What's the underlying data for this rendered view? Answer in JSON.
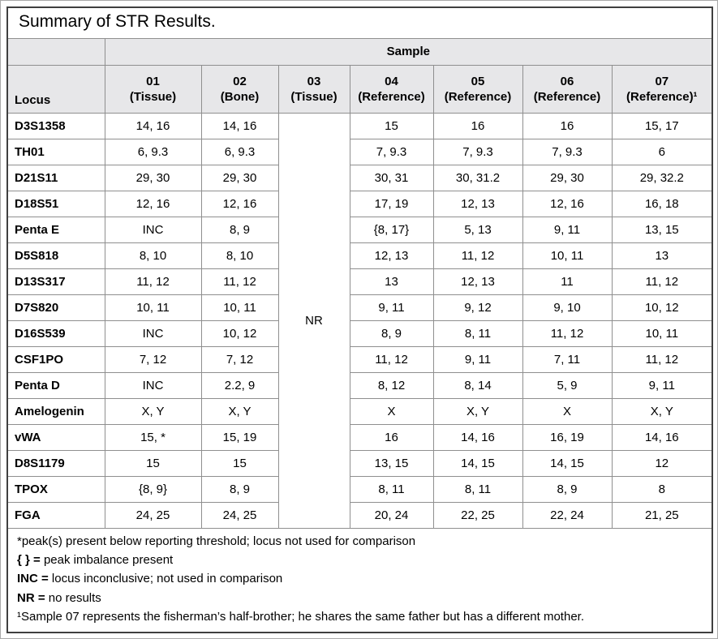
{
  "title": "Summary of STR Results.",
  "table": {
    "sample_group_header": "Sample",
    "locus_header": "Locus",
    "columns": [
      {
        "id": "01",
        "type": "(Tissue)"
      },
      {
        "id": "02",
        "type": "(Bone)"
      },
      {
        "id": "03",
        "type": "(Tissue)"
      },
      {
        "id": "04",
        "type": "(Reference)"
      },
      {
        "id": "05",
        "type": "(Reference)"
      },
      {
        "id": "06",
        "type": "(Reference)"
      },
      {
        "id": "07",
        "type": "(Reference)¹"
      }
    ],
    "merged_no_result": {
      "column": "03",
      "value": "NR"
    },
    "rows": [
      {
        "locus": "D3S1358",
        "values": [
          "14, 16",
          "14, 16",
          "15",
          "16",
          "16",
          "15, 17"
        ]
      },
      {
        "locus": "TH01",
        "values": [
          "6, 9.3",
          "6, 9.3",
          "7, 9.3",
          "7, 9.3",
          "7, 9.3",
          "6"
        ]
      },
      {
        "locus": "D21S11",
        "values": [
          "29, 30",
          "29, 30",
          "30, 31",
          "30, 31.2",
          "29, 30",
          "29, 32.2"
        ]
      },
      {
        "locus": "D18S51",
        "values": [
          "12, 16",
          "12, 16",
          "17, 19",
          "12, 13",
          "12, 16",
          "16, 18"
        ]
      },
      {
        "locus": "Penta E",
        "values": [
          "INC",
          "8, 9",
          "{8, 17}",
          "5, 13",
          "9, 11",
          "13, 15"
        ]
      },
      {
        "locus": "D5S818",
        "values": [
          "8, 10",
          "8, 10",
          "12, 13",
          "11, 12",
          "10, 11",
          "13"
        ]
      },
      {
        "locus": "D13S317",
        "values": [
          "11, 12",
          "11, 12",
          "13",
          "12, 13",
          "11",
          "11, 12"
        ]
      },
      {
        "locus": "D7S820",
        "values": [
          "10, 11",
          "10, 11",
          "9, 11",
          "9, 12",
          "9, 10",
          "10, 12"
        ]
      },
      {
        "locus": "D16S539",
        "values": [
          "INC",
          "10, 12",
          "8, 9",
          "8, 11",
          "11, 12",
          "10, 11"
        ]
      },
      {
        "locus": "CSF1PO",
        "values": [
          "7, 12",
          "7, 12",
          "11, 12",
          "9, 11",
          "7, 11",
          "11, 12"
        ]
      },
      {
        "locus": "Penta D",
        "values": [
          "INC",
          "2.2, 9",
          "8, 12",
          "8, 14",
          "5, 9",
          "9, 11"
        ]
      },
      {
        "locus": "Amelogenin",
        "values": [
          "X, Y",
          "X, Y",
          "X",
          "X, Y",
          "X",
          "X, Y"
        ]
      },
      {
        "locus": "vWA",
        "values": [
          "15, *",
          "15, 19",
          "16",
          "14, 16",
          "16, 19",
          "14, 16"
        ]
      },
      {
        "locus": "D8S1179",
        "values": [
          "15",
          "15",
          "13, 15",
          "14, 15",
          "14, 15",
          "12"
        ]
      },
      {
        "locus": "TPOX",
        "values": [
          "{8, 9}",
          "8, 9",
          "8, 11",
          "8, 11",
          "8, 9",
          "8"
        ]
      },
      {
        "locus": "FGA",
        "values": [
          "24, 25",
          "24, 25",
          "20, 24",
          "22, 25",
          "22, 24",
          "21, 25"
        ]
      }
    ]
  },
  "footnotes": [
    {
      "bold": "",
      "text": "*peak(s) present below reporting threshold; locus not used for comparison"
    },
    {
      "bold": "{ } =",
      "text": " peak imbalance present"
    },
    {
      "bold": "INC =",
      "text": " locus inconclusive; not used in comparison"
    },
    {
      "bold": "NR =",
      "text": " no results"
    },
    {
      "bold": "",
      "text": "¹Sample 07 represents the fisherman’s half-brother; he shares the same father but has a different mother."
    }
  ]
}
